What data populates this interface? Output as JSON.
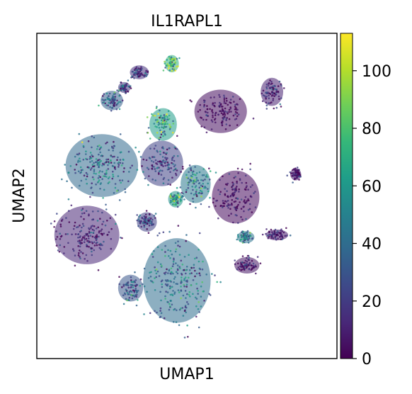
{
  "chart_data": {
    "type": "scatter",
    "title": "IL1RAPL1",
    "xlabel": "UMAP1",
    "ylabel": "UMAP2",
    "grid": false,
    "legend": "none",
    "colorbar": {
      "colormap": "viridis",
      "range": [
        0,
        113
      ],
      "ticks": [
        0,
        20,
        40,
        60,
        80,
        100
      ],
      "tick_labels": [
        "0",
        "20",
        "40",
        "60",
        "80",
        "100"
      ],
      "colors": [
        "#440154",
        "#482878",
        "#3e4989",
        "#31688e",
        "#26828e",
        "#1f9e89",
        "#35b779",
        "#6ece58",
        "#b5de2b",
        "#fde725"
      ]
    },
    "clusters": [
      {
        "cx": 1.35,
        "cy": 8.9,
        "rx": 1.05,
        "ry": 1.0,
        "value": 4
      },
      {
        "cx": 1.95,
        "cy": 4.95,
        "rx": 0.95,
        "ry": 1.22,
        "value": 3
      },
      {
        "cx": 0.35,
        "cy": 5.55,
        "rx": 0.6,
        "ry": 0.88,
        "value": 46
      },
      {
        "cx": -1.0,
        "cy": 6.5,
        "rx": 0.85,
        "ry": 1.05,
        "value": 22
      },
      {
        "cx": -0.95,
        "cy": 8.3,
        "rx": 0.55,
        "ry": 0.75,
        "value": 62
      },
      {
        "cx": -3.4,
        "cy": 6.4,
        "rx": 1.45,
        "ry": 1.45,
        "value": 38
      },
      {
        "cx": -4.0,
        "cy": 3.2,
        "rx": 1.3,
        "ry": 1.35,
        "value": 12
      },
      {
        "cx": -0.4,
        "cy": 1.1,
        "rx": 1.35,
        "ry": 1.95,
        "value": 40
      },
      {
        "cx": -2.25,
        "cy": 0.75,
        "rx": 0.5,
        "ry": 0.62,
        "value": 30
      },
      {
        "cx": -1.9,
        "cy": 10.7,
        "rx": 0.38,
        "ry": 0.32,
        "value": 16
      },
      {
        "cx": -0.6,
        "cy": 11.1,
        "rx": 0.28,
        "ry": 0.4,
        "value": 72
      },
      {
        "cx": -3.0,
        "cy": 9.4,
        "rx": 0.45,
        "ry": 0.45,
        "value": 34
      },
      {
        "cx": -2.5,
        "cy": 10.0,
        "rx": 0.25,
        "ry": 0.25,
        "value": 18
      },
      {
        "cx": -1.6,
        "cy": 3.8,
        "rx": 0.4,
        "ry": 0.45,
        "value": 22
      },
      {
        "cx": -0.45,
        "cy": 4.85,
        "rx": 0.3,
        "ry": 0.38,
        "value": 58
      },
      {
        "cx": 2.35,
        "cy": 3.1,
        "rx": 0.35,
        "ry": 0.28,
        "value": 44
      },
      {
        "cx": 2.4,
        "cy": 1.8,
        "rx": 0.5,
        "ry": 0.38,
        "value": 6
      },
      {
        "cx": 3.6,
        "cy": 3.2,
        "rx": 0.45,
        "ry": 0.25,
        "value": 8
      },
      {
        "cx": 4.35,
        "cy": 6.0,
        "rx": 0.22,
        "ry": 0.28,
        "value": 8
      },
      {
        "cx": 3.4,
        "cy": 9.8,
        "rx": 0.45,
        "ry": 0.65,
        "value": 10
      }
    ]
  }
}
